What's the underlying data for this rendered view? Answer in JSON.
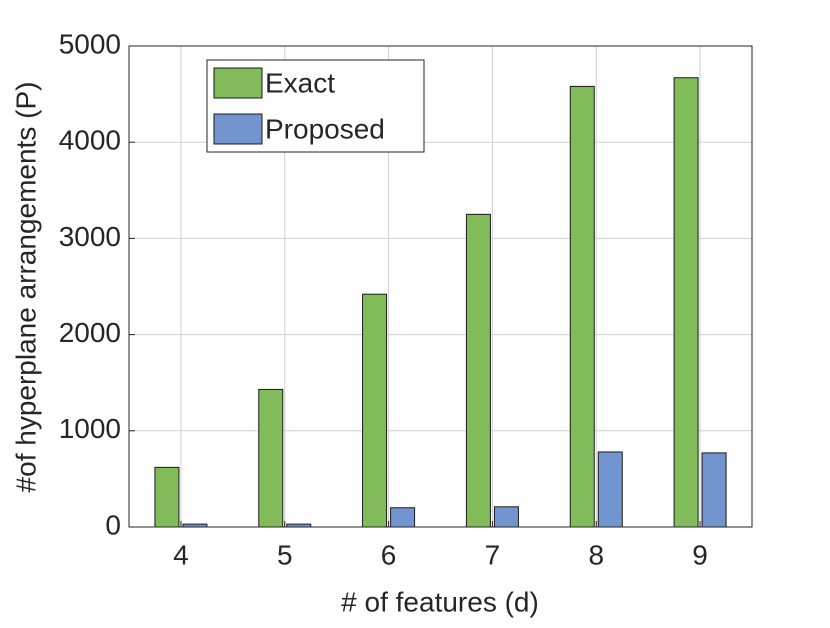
{
  "chart_data": {
    "type": "bar",
    "x_label": "# of features (d)",
    "y_label": "#of hyperplane arrangements (P)",
    "categories": [
      "4",
      "5",
      "6",
      "7",
      "8",
      "9"
    ],
    "series": [
      {
        "name": "Exact",
        "color": "#82bb5a",
        "values": [
          620,
          1430,
          2420,
          3250,
          4580,
          4670
        ]
      },
      {
        "name": "Proposed",
        "color": "#7294cf",
        "values": [
          30,
          30,
          200,
          210,
          780,
          770
        ]
      }
    ],
    "ylim": [
      0,
      5000
    ],
    "yticks": [
      0,
      1000,
      2000,
      3000,
      4000,
      5000
    ],
    "grid": true,
    "legend": "upper-left"
  }
}
